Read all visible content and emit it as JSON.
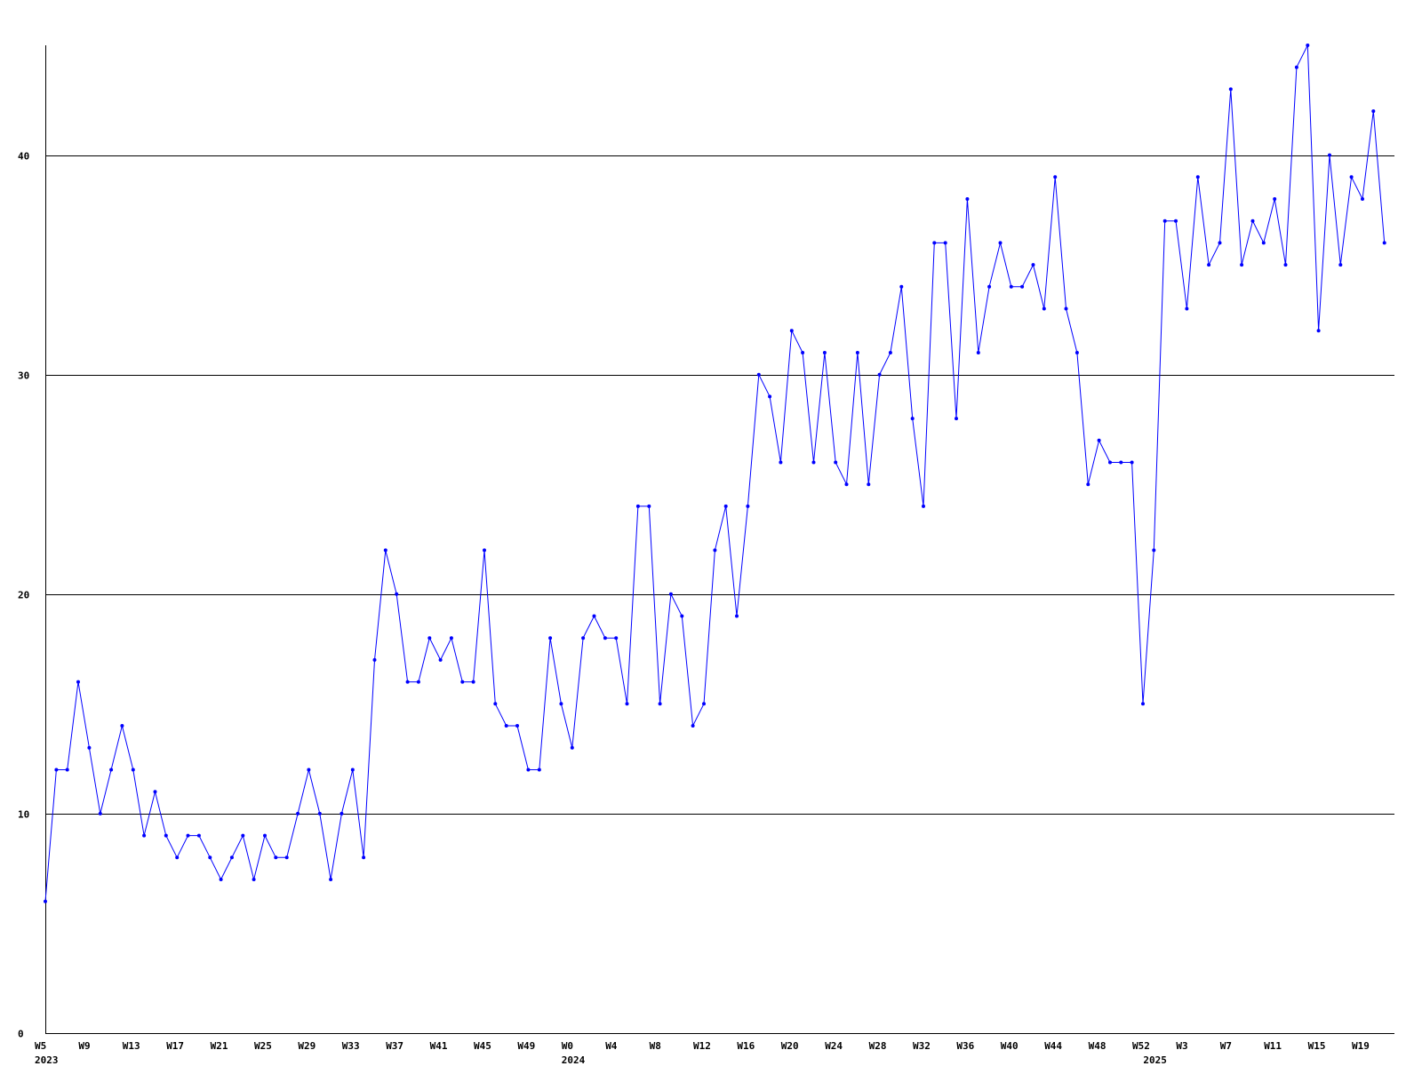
{
  "chart_data": {
    "type": "line",
    "title": "",
    "xlabel": "",
    "ylabel": "",
    "ylim": [
      0,
      45
    ],
    "y_ticks": [
      0,
      10,
      20,
      30,
      40
    ],
    "grid": "horizontal",
    "line_color": "#0000ff",
    "x_tick_labels": [
      "W5",
      "W9",
      "W13",
      "W17",
      "W21",
      "W25",
      "W29",
      "W33",
      "W37",
      "W41",
      "W45",
      "W49",
      "W0",
      "W4",
      "W8",
      "W12",
      "W16",
      "W20",
      "W24",
      "W28",
      "W32",
      "W36",
      "W40",
      "W44",
      "W48",
      "W52",
      "W3",
      "W7",
      "W11",
      "W15",
      "W19"
    ],
    "x_tick_week_index": [
      0,
      4,
      8,
      12,
      16,
      20,
      24,
      28,
      32,
      36,
      40,
      44,
      48,
      52,
      56,
      60,
      64,
      68,
      72,
      76,
      80,
      84,
      88,
      92,
      96,
      100,
      104,
      108,
      112,
      116,
      120
    ],
    "year_labels": [
      "2023",
      "2024",
      "2025"
    ],
    "year_week_index": [
      0,
      48,
      101
    ],
    "series": [
      {
        "values": [
          6,
          12,
          12,
          16,
          13,
          10,
          12,
          14,
          12,
          9,
          11,
          9,
          8,
          9,
          9,
          8,
          7,
          8,
          9,
          7,
          9,
          8,
          8,
          10,
          12,
          10,
          7,
          10,
          12,
          8,
          17,
          22,
          20,
          16,
          16,
          18,
          17,
          18,
          16,
          16,
          22,
          15,
          14,
          14,
          12,
          12,
          18,
          15,
          13,
          18,
          19,
          18,
          18,
          15,
          24,
          24,
          15,
          20,
          19,
          14,
          15,
          22,
          24,
          19,
          24,
          30,
          29,
          26,
          32,
          31,
          26,
          31,
          26,
          25,
          31,
          25,
          30,
          31,
          34,
          28,
          24,
          36,
          36,
          28,
          38,
          31,
          34,
          36,
          34,
          34,
          35,
          33,
          39,
          33,
          31,
          25,
          27,
          26,
          26,
          26,
          15,
          22,
          37,
          37,
          33,
          39,
          35,
          36,
          43,
          35,
          37,
          36,
          38,
          35,
          44,
          45,
          32,
          40,
          35,
          39,
          38,
          42,
          36
        ]
      }
    ]
  }
}
